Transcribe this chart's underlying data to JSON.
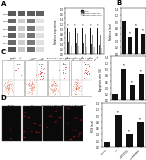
{
  "panel_A_bar": {
    "groups": [
      "Nrf2",
      "HO-1",
      "NQO1",
      "GCLC",
      "GCLM"
    ],
    "series": {
      "Control": [
        1.0,
        1.0,
        1.0,
        1.0,
        1.0
      ],
      "LPS": [
        0.45,
        0.42,
        0.4,
        0.38,
        0.35
      ],
      "quercetin+LPS+siNC": [
        0.85,
        0.8,
        0.78,
        0.75,
        0.72
      ],
      "quercetin+LPS+siNrf2": [
        0.3,
        0.28,
        0.26,
        0.24,
        0.22
      ]
    },
    "colors": [
      "#111111",
      "#444444",
      "#888888",
      "#cccccc"
    ],
    "ylim": [
      0,
      1.8
    ],
    "ylabel": "Relative expression"
  },
  "panel_B_bar": {
    "categories": [
      "Control",
      "LPS",
      "quercetin\n+LPS+siNC",
      "quercetin\n+LPS+siNrf2"
    ],
    "values": [
      1.0,
      0.52,
      0.78,
      0.62
    ],
    "color": "#111111",
    "ylim": [
      0,
      1.4
    ],
    "ylabel": "Relative level"
  },
  "panel_C_bar": {
    "categories": [
      "Control",
      "LPS",
      "quercetin\n+LPS+siNC",
      "quercetin\n+LPS+siNrf2"
    ],
    "values": [
      0.18,
      1.0,
      0.48,
      0.82
    ],
    "color": "#111111",
    "ylim": [
      0,
      1.4
    ],
    "ylabel": "Apoptosis rate (%)"
  },
  "panel_D_bar": {
    "categories": [
      "Control",
      "LPS",
      "quercetin\n+LPS+siNC",
      "quercetin\n+LPS+siNrf2"
    ],
    "values": [
      0.15,
      1.0,
      0.4,
      0.78
    ],
    "color": "#111111",
    "ylim": [
      0,
      1.4
    ],
    "ylabel": "ROS level"
  },
  "wb_row_labels": [
    "Nrf2",
    "HO-1",
    "NQO1",
    "GCLC",
    "GCLM",
    "β-actin"
  ],
  "wb_lane_labels": [
    "Control",
    "LPS",
    "quercetin+\nLPS+siNC",
    "quercetin+\nLPS+siNrf2"
  ],
  "flow_labels": [
    "Control",
    "LPS",
    "quercetin + LPS + siNC",
    "quercetin + LPS + siNrf2"
  ],
  "microscopy_labels": [
    "Control",
    "LPS",
    "quercetin + LPS + siNC",
    "quercetin + LPS + siNrf2"
  ],
  "background": "#ffffff",
  "text_color": "#000000",
  "panel_labels": [
    "A",
    "B",
    "C",
    "D"
  ]
}
